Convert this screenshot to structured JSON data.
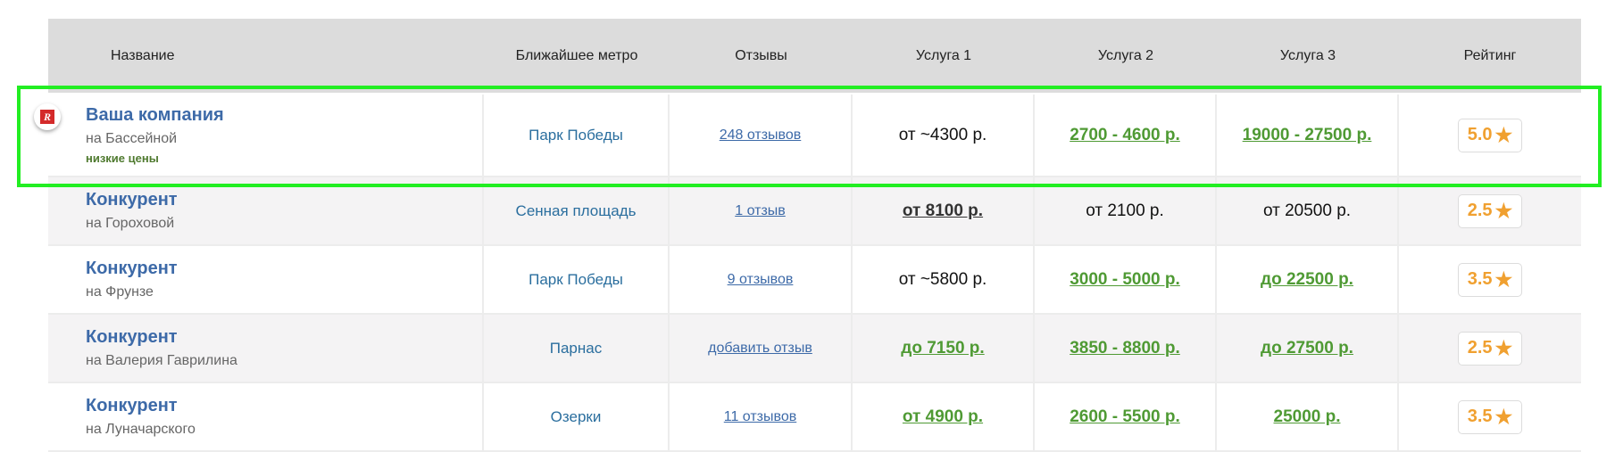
{
  "header": {
    "name": "Название",
    "metro": "Ближайшее метро",
    "reviews": "Отзывы",
    "service1": "Услуга 1",
    "service2": "Услуга 2",
    "service3": "Услуга 3",
    "rating": "Рейтинг"
  },
  "colors": {
    "highlight": "#22ee22",
    "link": "#3d6aa8",
    "price_green": "#4f9a34",
    "rating": "#f0a030",
    "header_bg": "#dcdcdc"
  },
  "rows": [
    {
      "name": "Ваша компания",
      "address": "на Бассейной",
      "tag": "низкие цены",
      "logo_icon": "company-logo",
      "metro": "Парк Победы",
      "reviews": "248 отзывов",
      "s1": "от ~4300 р.",
      "s2": "2700 - 4600 р.",
      "s3": "19000 - 27500 р.",
      "rating": "5.0",
      "highlighted": true
    },
    {
      "name": "Конкурент",
      "address": "на Гороховой",
      "metro": "Сенная площадь",
      "reviews": "1 отзыв",
      "s1": "от 8100 р.",
      "s2": "от 2100 р.",
      "s3": "от 20500 р.",
      "rating": "2.5"
    },
    {
      "name": "Конкурент",
      "address": "на Фрунзе",
      "metro": "Парк Победы",
      "reviews": "9 отзывов",
      "s1": "от ~5800 р.",
      "s2": "3000 - 5000 р.",
      "s3": "до 22500 р.",
      "rating": "3.5"
    },
    {
      "name": "Конкурент",
      "address": "на Валерия Гаврилина",
      "metro": "Парнас",
      "reviews": "добавить отзыв",
      "s1": "до 7150 р.",
      "s2": "3850 - 8800 р.",
      "s3": "до 27500 р.",
      "rating": "2.5"
    },
    {
      "name": "Конкурент",
      "address": "на Луначарского",
      "metro": "Озерки",
      "reviews": "11 отзывов",
      "s1": "от 4900 р.",
      "s2": "2600 - 5500 р.",
      "s3": "25000 р.",
      "rating": "3.5"
    }
  ]
}
